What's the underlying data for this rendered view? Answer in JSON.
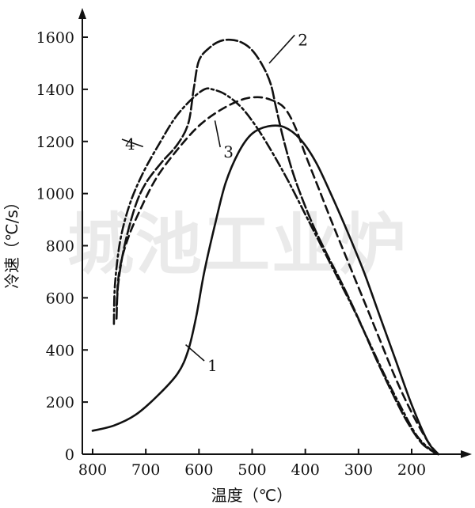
{
  "watermark": "城池工业炉",
  "chart_data": {
    "type": "line",
    "xlabel": "温度（℃）",
    "ylabel": "冷速（℃/s）",
    "xlim": [
      800,
      150
    ],
    "ylim": [
      0,
      1700
    ],
    "xticks": [
      800,
      700,
      600,
      500,
      400,
      300,
      200
    ],
    "yticks": [
      0,
      200,
      400,
      600,
      800,
      1000,
      1200,
      1400,
      1600
    ],
    "grid": false,
    "series": [
      {
        "name": "1",
        "dash": "solid",
        "points": [
          [
            800,
            90
          ],
          [
            760,
            110
          ],
          [
            720,
            150
          ],
          [
            680,
            220
          ],
          [
            640,
            310
          ],
          [
            620,
            400
          ],
          [
            605,
            530
          ],
          [
            590,
            700
          ],
          [
            570,
            880
          ],
          [
            550,
            1040
          ],
          [
            525,
            1160
          ],
          [
            500,
            1230
          ],
          [
            470,
            1258
          ],
          [
            440,
            1255
          ],
          [
            410,
            1210
          ],
          [
            380,
            1120
          ],
          [
            350,
            990
          ],
          [
            320,
            850
          ],
          [
            290,
            700
          ],
          [
            260,
            530
          ],
          [
            230,
            360
          ],
          [
            200,
            190
          ],
          [
            170,
            50
          ],
          [
            150,
            0
          ]
        ]
      },
      {
        "name": "2",
        "dash": "longdash",
        "points": [
          [
            755,
            520
          ],
          [
            752,
            650
          ],
          [
            740,
            800
          ],
          [
            720,
            950
          ],
          [
            700,
            1040
          ],
          [
            670,
            1120
          ],
          [
            640,
            1190
          ],
          [
            620,
            1270
          ],
          [
            610,
            1400
          ],
          [
            600,
            1510
          ],
          [
            580,
            1560
          ],
          [
            560,
            1585
          ],
          [
            540,
            1590
          ],
          [
            520,
            1580
          ],
          [
            500,
            1550
          ],
          [
            480,
            1490
          ],
          [
            465,
            1420
          ],
          [
            455,
            1330
          ],
          [
            440,
            1200
          ],
          [
            420,
            1060
          ],
          [
            390,
            900
          ],
          [
            360,
            770
          ],
          [
            330,
            650
          ],
          [
            300,
            520
          ],
          [
            270,
            380
          ],
          [
            240,
            250
          ],
          [
            210,
            130
          ],
          [
            180,
            40
          ],
          [
            150,
            0
          ]
        ]
      },
      {
        "name": "3",
        "dash": "dash",
        "points": [
          [
            755,
            570
          ],
          [
            750,
            700
          ],
          [
            735,
            820
          ],
          [
            710,
            940
          ],
          [
            680,
            1060
          ],
          [
            640,
            1170
          ],
          [
            600,
            1260
          ],
          [
            560,
            1320
          ],
          [
            520,
            1360
          ],
          [
            490,
            1370
          ],
          [
            465,
            1360
          ],
          [
            440,
            1330
          ],
          [
            420,
            1260
          ],
          [
            400,
            1150
          ],
          [
            375,
            1020
          ],
          [
            350,
            890
          ],
          [
            320,
            740
          ],
          [
            290,
            590
          ],
          [
            260,
            440
          ],
          [
            230,
            290
          ],
          [
            200,
            160
          ],
          [
            170,
            50
          ],
          [
            150,
            0
          ]
        ]
      },
      {
        "name": "4",
        "dash": "dashdot",
        "points": [
          [
            760,
            500
          ],
          [
            758,
            650
          ],
          [
            748,
            820
          ],
          [
            730,
            960
          ],
          [
            705,
            1080
          ],
          [
            675,
            1190
          ],
          [
            645,
            1290
          ],
          [
            615,
            1360
          ],
          [
            590,
            1400
          ],
          [
            575,
            1400
          ],
          [
            550,
            1380
          ],
          [
            520,
            1330
          ],
          [
            490,
            1250
          ],
          [
            460,
            1150
          ],
          [
            430,
            1040
          ],
          [
            400,
            920
          ],
          [
            370,
            800
          ],
          [
            340,
            680
          ],
          [
            310,
            560
          ],
          [
            280,
            430
          ],
          [
            250,
            300
          ],
          [
            220,
            180
          ],
          [
            190,
            70
          ],
          [
            160,
            10
          ],
          [
            150,
            0
          ]
        ]
      }
    ],
    "curve_labels": [
      {
        "text": "1",
        "anchor": [
          625,
          420
        ],
        "at": [
          590,
          340
        ]
      },
      {
        "text": "2",
        "anchor": [
          468,
          1500
        ],
        "at": [
          420,
          1590
        ]
      },
      {
        "text": "3",
        "anchor": [
          570,
          1280
        ],
        "at": [
          560,
          1160
        ]
      },
      {
        "text": "4",
        "anchor": [
          705,
          1180
        ],
        "at": [
          745,
          1190
        ]
      }
    ]
  }
}
